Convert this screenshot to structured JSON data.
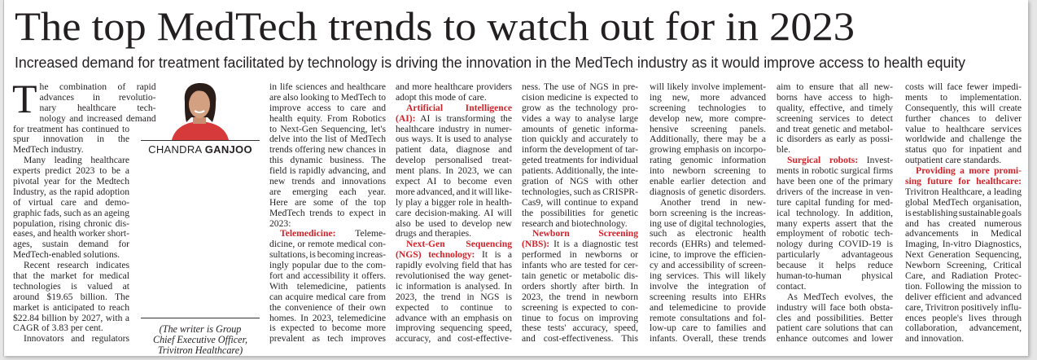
{
  "article": {
    "title": "The top MedTech trends to watch out for in 2023",
    "subtitle": "Increased demand for treatment facilitated by technology is driving the innovation in the MedTech industry as it would improve access to health equity",
    "accent_color": "#d2232a",
    "author": {
      "first": "CHANDRA",
      "last": "GANJOO"
    },
    "caption": [
      "(The writer is Group",
      "Chief Executive Officer,",
      "Trivitron Healthcare)"
    ],
    "drop_cap": "T",
    "columns": [
      [
        {
          "t": "he combination of rapid",
          "dc": true
        },
        {
          "t": "advances in revolutio-"
        },
        {
          "t": "nary healthcare tech-"
        },
        {
          "t": "nology and increased demand"
        },
        {
          "t": "for treatment has continued to"
        },
        {
          "t": "spur innovation in the"
        },
        {
          "t": "MedTech industry.",
          "e": true
        },
        {
          "t": "Many leading healthcare",
          "i": true
        },
        {
          "t": "experts predict 2023 to be a"
        },
        {
          "t": "pivotal year for the Medtech"
        },
        {
          "t": "Industry, as the rapid adoption"
        },
        {
          "t": "of virtual care and demo-"
        },
        {
          "t": "graphic fads, such as an ageing"
        },
        {
          "t": "population, rising chronic dis-"
        },
        {
          "t": "eases, and health worker short-"
        },
        {
          "t": "ages, sustain demand for"
        },
        {
          "t": "MedTech-enabled solutions.",
          "e": true
        },
        {
          "t": "Recent research indicates",
          "i": true
        },
        {
          "t": "that the market for medical"
        },
        {
          "t": "technologies is valued at"
        },
        {
          "t": "around $19.65 billion. The"
        },
        {
          "t": "market is anticipated to reach"
        },
        {
          "t": "$22.84 billion by 2027, with a"
        },
        {
          "t": "CAGR of 3.83 per cent.",
          "e": true
        },
        {
          "t": "Innovators and regulators",
          "i": true
        }
      ],
      [
        {
          "t": "in life sciences and healthcare"
        },
        {
          "t": "are also looking to MedTech to"
        },
        {
          "t": "improve access to care and"
        },
        {
          "t": "health equity. From Robotics"
        },
        {
          "t": "to Next-Gen Sequencing, let's"
        },
        {
          "t": "delve into the list of MedTech"
        },
        {
          "t": "trends offering new chances in"
        },
        {
          "t": "this dynamic business. The"
        },
        {
          "t": "field is rapidly advancing, and"
        },
        {
          "t": "new trends and innovations"
        },
        {
          "t": "are emerging each year."
        },
        {
          "t": "Here are some of the top"
        },
        {
          "t": "MedTech trends to expect in"
        },
        {
          "t": "2023:",
          "e": true
        },
        {
          "h": "Telemedicine:",
          "t": " Teleme-",
          "i": true
        },
        {
          "t": "dicine, or remote medical con-"
        },
        {
          "t": "sultations, is becoming increas-"
        },
        {
          "t": "ingly popular due to the com-"
        },
        {
          "t": "fort and accessibility it offers."
        },
        {
          "t": "With telemedicine, patients"
        },
        {
          "t": "can acquire medical care from"
        },
        {
          "t": "the convenience of their own"
        },
        {
          "t": "homes. In 2023, telemedicine"
        },
        {
          "t": "is expected to become more"
        },
        {
          "t": "prevalent as tech improves"
        }
      ],
      [
        {
          "t": "and more healthcare providers"
        },
        {
          "t": "adopt this mode of care.",
          "e": true
        },
        {
          "h": "Artificial Intelligence",
          "t": "",
          "i": true
        },
        {
          "h": "(AI):",
          "t": " AI is transforming the"
        },
        {
          "t": "healthcare industry in numer-"
        },
        {
          "t": "ous ways. It is used to analyse"
        },
        {
          "t": "patient data, diagnose and"
        },
        {
          "t": "develop personalised treat-"
        },
        {
          "t": "ment plans. In 2023, we can"
        },
        {
          "t": "expect AI to become even"
        },
        {
          "t": "more advanced, and it will like-"
        },
        {
          "t": "ly play a bigger role in health-"
        },
        {
          "t": "care decision-making. AI will"
        },
        {
          "t": "also be used to develop new"
        },
        {
          "t": "drugs and therapies.",
          "e": true
        },
        {
          "h": "Next-Gen Sequencing",
          "t": "",
          "i": true
        },
        {
          "h": "(NGS) technology:",
          "t": " It is a"
        },
        {
          "t": "rapidly evolving field that has"
        },
        {
          "t": "revolutionised the way genet-"
        },
        {
          "t": "ic information is analysed. In"
        },
        {
          "t": "2023, the trend in NGS is"
        },
        {
          "t": "expected to continue to"
        },
        {
          "t": "advance with an emphasis on"
        },
        {
          "t": "improving sequencing speed,"
        },
        {
          "t": "accuracy, and cost-effective-"
        }
      ],
      [
        {
          "t": "ness. The use of NGS in pre-"
        },
        {
          "t": "cision medicine is expected to"
        },
        {
          "t": "grow as the technology pro-"
        },
        {
          "t": "vides a way to analyse large"
        },
        {
          "t": "amounts of genetic informa-"
        },
        {
          "t": "tion quickly and accurately to"
        },
        {
          "t": "inform the development of tar-"
        },
        {
          "t": "geted treatments for individual"
        },
        {
          "t": "patients. Additionally, the inte-"
        },
        {
          "t": "gration of NGS with other"
        },
        {
          "t": "technologies, such as CRISPR-"
        },
        {
          "t": "Cas9, will continue to expand"
        },
        {
          "t": "the possibilities for genetic"
        },
        {
          "t": "research and biotechnology.",
          "e": true
        },
        {
          "h": "Newborn Screening",
          "t": "",
          "i": true
        },
        {
          "h": "(NBS):",
          "t": " It is a diagnostic test"
        },
        {
          "t": "performed in newborns or"
        },
        {
          "t": "infants who are tested for cer-"
        },
        {
          "t": "tain genetic or metabolic dis-"
        },
        {
          "t": "orders shortly after birth. In"
        },
        {
          "t": "2023, the trend in newborn"
        },
        {
          "t": "screening is expected to con-"
        },
        {
          "t": "tinue to focus on improving"
        },
        {
          "t": "these tests' accuracy, speed,"
        },
        {
          "t": "and cost-effectiveness. This"
        }
      ],
      [
        {
          "t": "will likely involve implement-"
        },
        {
          "t": "ing new, more advanced"
        },
        {
          "t": "screening technologies to"
        },
        {
          "t": "develop new, more compre-"
        },
        {
          "t": "hensive screening panels."
        },
        {
          "t": "Additionally, there may be a"
        },
        {
          "t": "growing emphasis on incorpo-"
        },
        {
          "t": "rating genomic information"
        },
        {
          "t": "into newborn screening to"
        },
        {
          "t": "enable earlier detection and"
        },
        {
          "t": "diagnosis of genetic disorders."
        },
        {
          "t": "Another trend in new-",
          "i": true
        },
        {
          "t": "born screening is the increas-"
        },
        {
          "t": "ing use of digital technologies,"
        },
        {
          "t": "such as electronic health"
        },
        {
          "t": "records (EHRs) and telemed-"
        },
        {
          "t": "icine, to improve the efficien-"
        },
        {
          "t": "cy and accessibility of screen-"
        },
        {
          "t": "ing services. This will likely"
        },
        {
          "t": "involve the integration of"
        },
        {
          "t": "screening results into EHRs"
        },
        {
          "t": "and telemedicine to provide"
        },
        {
          "t": "remote consultations and fol-"
        },
        {
          "t": "low-up care to families and"
        },
        {
          "t": "infants. Overall, these trends"
        }
      ],
      [
        {
          "t": "aim to ensure that all new-"
        },
        {
          "t": "borns have access to high-"
        },
        {
          "t": "quality, effective, and timely"
        },
        {
          "t": "screening services to detect"
        },
        {
          "t": "and treat genetic and metabol-"
        },
        {
          "t": "ic disorders as early as possi-"
        },
        {
          "t": "ble.",
          "e": true
        },
        {
          "h": "Surgical robots:",
          "t": " Invest-",
          "i": true
        },
        {
          "t": "ments in robotic surgical firms"
        },
        {
          "t": "have been one of the primary"
        },
        {
          "t": "drivers of the increase in ven-"
        },
        {
          "t": "ture capital funding for med-"
        },
        {
          "t": "ical technology. In addition,"
        },
        {
          "t": "many experts assert that the"
        },
        {
          "t": "employment of robotic tech-"
        },
        {
          "t": "nology during COVID-19 is"
        },
        {
          "t": "particularly advantageous"
        },
        {
          "t": "because it helps reduce"
        },
        {
          "t": "human-to-human physical"
        },
        {
          "t": "contact.",
          "e": true
        },
        {
          "t": "As MedTech evolves, the",
          "i": true
        },
        {
          "t": "industry will face both obsta-"
        },
        {
          "t": "cles and possibilities. Better"
        },
        {
          "t": "patient care solutions that can"
        },
        {
          "t": "enhance outcomes and lower"
        }
      ],
      [
        {
          "t": "costs will face fewer impedi-"
        },
        {
          "t": "ments to implementation."
        },
        {
          "t": "Consequently, this will create"
        },
        {
          "t": "further chances to deliver"
        },
        {
          "t": "value to healthcare services"
        },
        {
          "t": "worldwide and challenge the"
        },
        {
          "t": "status quo for inpatient and"
        },
        {
          "t": "outpatient care standards.",
          "e": true
        },
        {
          "h": "Providing a more promi-",
          "t": "",
          "i": true
        },
        {
          "h": "sing future for healthcare:",
          "t": ""
        },
        {
          "t": "Trivitron Healthcare, a leading"
        },
        {
          "t": "global MedTech organisation,"
        },
        {
          "t": "is establishing sustainable goals"
        },
        {
          "t": "and has created numerous"
        },
        {
          "t": "advancements in Medical"
        },
        {
          "t": "Imaging, In-vitro Diagnostics,"
        },
        {
          "t": "Next Generation Sequencing,"
        },
        {
          "t": "Newborn Screening, Critical"
        },
        {
          "t": "Care, and Radiation Protec-"
        },
        {
          "t": "tion. Following the mission to"
        },
        {
          "t": "deliver efficient and advanced"
        },
        {
          "t": "care, Trivitron positively influ-"
        },
        {
          "t": "ences people's lives through"
        },
        {
          "t": "collaboration, advancement,"
        },
        {
          "t": "and innovation.",
          "e": true
        }
      ]
    ]
  }
}
